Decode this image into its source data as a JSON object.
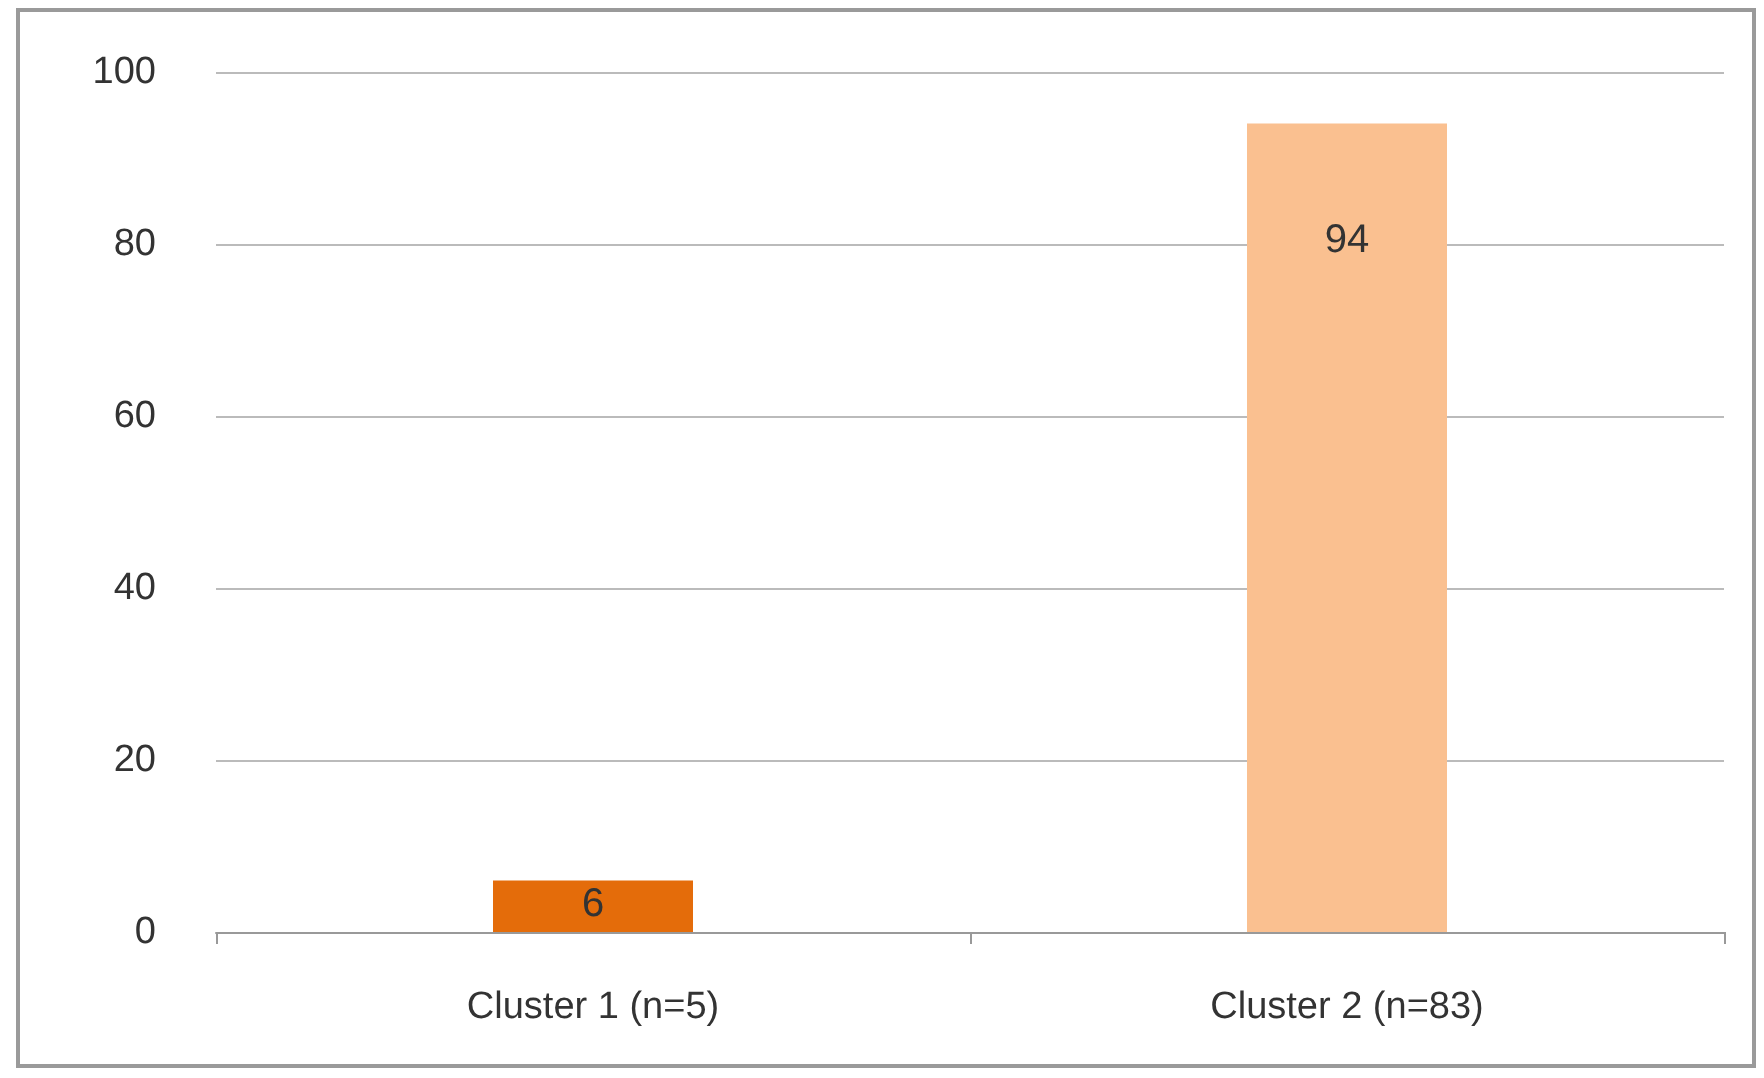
{
  "chart_data": {
    "type": "bar",
    "categories": [
      "Cluster 1 (n=5)",
      "Cluster 2 (n=83)"
    ],
    "values": [
      6,
      94
    ],
    "colors": [
      "#e46c0a",
      "#fac090"
    ],
    "ylim": [
      0,
      100
    ],
    "yticks": [
      0,
      20,
      40,
      60,
      80,
      100
    ],
    "grid": "y",
    "data_labels": true
  }
}
